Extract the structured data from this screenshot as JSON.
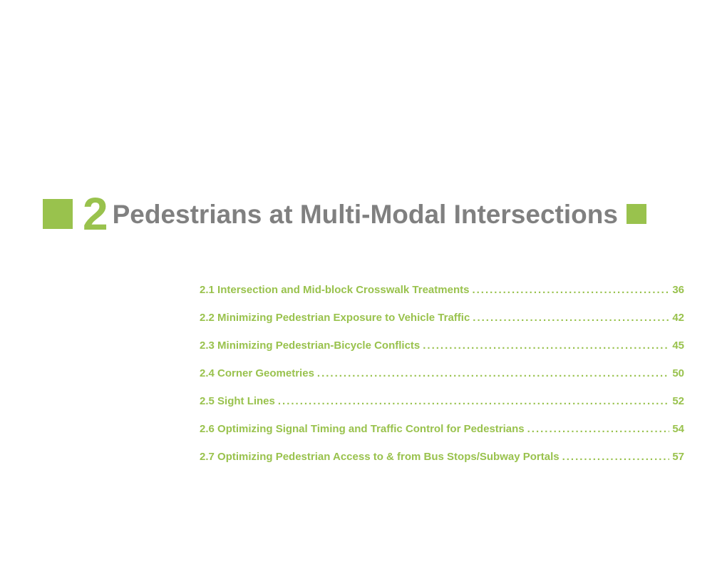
{
  "colors": {
    "accent": "#99c24d",
    "text_dark": "#808080",
    "toc_text": "#99c24d",
    "background": "#ffffff"
  },
  "typography": {
    "chapter_number_size": 64,
    "chapter_title_size": 37,
    "toc_size": 15,
    "font_family": "Arial, Helvetica, sans-serif"
  },
  "chapter": {
    "number": "2",
    "title": "Pedestrians at Multi-Modal Intersections"
  },
  "toc": {
    "entries": [
      {
        "num": "2.1",
        "title": "Intersection and Mid-block Crosswalk Treatments",
        "page": "36"
      },
      {
        "num": "2.2",
        "title": "Minimizing Pedestrian Exposure to Vehicle Traffic",
        "page": "42"
      },
      {
        "num": "2.3",
        "title": "Minimizing Pedestrian-Bicycle Conflicts",
        "page": "45"
      },
      {
        "num": "2.4",
        "title": "Corner Geometries",
        "page": "50"
      },
      {
        "num": "2.5",
        "title": "Sight Lines",
        "page": "52"
      },
      {
        "num": "2.6",
        "title": "Optimizing Signal Timing and Traffic Control for Pedestrians",
        "page": "54"
      },
      {
        "num": "2.7",
        "title": "Optimizing Pedestrian Access to & from Bus Stops/Subway Portals",
        "page": "57"
      }
    ]
  }
}
